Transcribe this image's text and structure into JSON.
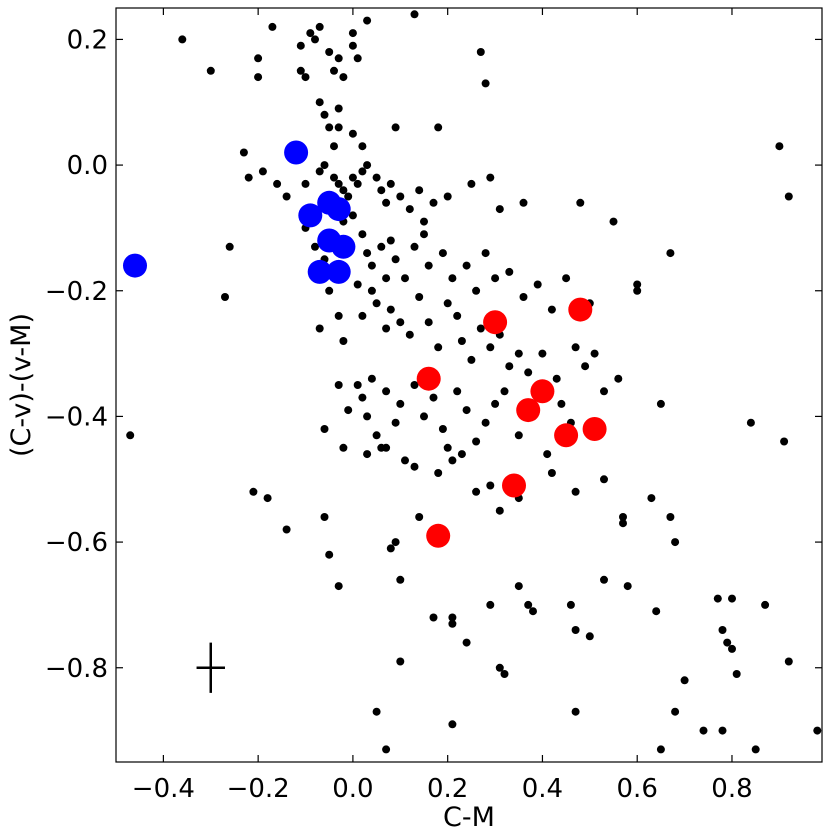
{
  "chart_data": {
    "type": "scatter",
    "title": "",
    "xlabel": "C-M",
    "ylabel": "(C-v)-(v-M)",
    "xlim": [
      -0.5,
      0.99
    ],
    "ylim": [
      -0.95,
      0.25
    ],
    "xticks": [
      -0.4,
      -0.2,
      0.0,
      0.2,
      0.4,
      0.6,
      0.8
    ],
    "xtick_labels": [
      "−0.4",
      "−0.2",
      "0.0",
      "0.2",
      "0.4",
      "0.6",
      "0.8"
    ],
    "yticks": [
      0.2,
      0.0,
      -0.2,
      -0.4,
      -0.6,
      -0.8
    ],
    "ytick_labels": [
      "0.2",
      "0.0",
      "−0.2",
      "−0.4",
      "−0.6",
      "−0.8"
    ],
    "grid": false,
    "tick_direction": "in",
    "series": [
      {
        "color": "#000000",
        "points": [
          [
            -0.36,
            0.2
          ],
          [
            -0.3,
            0.15
          ],
          [
            -0.2,
            0.17
          ],
          [
            -0.2,
            0.14
          ],
          [
            -0.17,
            0.22
          ],
          [
            -0.11,
            0.19
          ],
          [
            -0.11,
            0.15
          ],
          [
            -0.1,
            0.14
          ],
          [
            -0.09,
            0.21
          ],
          [
            -0.08,
            0.2
          ],
          [
            -0.07,
            0.22
          ],
          [
            -0.05,
            0.18
          ],
          [
            -0.04,
            0.15
          ],
          [
            -0.03,
            0.17
          ],
          [
            -0.02,
            0.14
          ],
          [
            0.0,
            0.21
          ],
          [
            0.03,
            0.23
          ],
          [
            0.0,
            0.19
          ],
          [
            0.01,
            0.17
          ],
          [
            0.13,
            0.24
          ],
          [
            0.27,
            0.18
          ],
          [
            0.28,
            0.13
          ],
          [
            -0.07,
            0.1
          ],
          [
            -0.06,
            0.08
          ],
          [
            -0.05,
            0.06
          ],
          [
            -0.04,
            0.03
          ],
          [
            -0.03,
            0.06
          ],
          [
            -0.03,
            0.09
          ],
          [
            0.0,
            0.05
          ],
          [
            0.02,
            0.03
          ],
          [
            0.09,
            0.06
          ],
          [
            0.18,
            0.06
          ],
          [
            -0.23,
            0.02
          ],
          [
            -0.22,
            -0.02
          ],
          [
            -0.19,
            -0.01
          ],
          [
            -0.16,
            -0.03
          ],
          [
            -0.14,
            -0.05
          ],
          [
            -0.1,
            -0.03
          ],
          [
            -0.07,
            -0.01
          ],
          [
            -0.06,
            0.0
          ],
          [
            -0.04,
            -0.02
          ],
          [
            -0.03,
            -0.03
          ],
          [
            -0.02,
            -0.04
          ],
          [
            -0.01,
            -0.05
          ],
          [
            0.0,
            -0.02
          ],
          [
            0.01,
            -0.03
          ],
          [
            0.02,
            -0.01
          ],
          [
            0.03,
            0.0
          ],
          [
            0.05,
            -0.02
          ],
          [
            0.06,
            -0.04
          ],
          [
            0.07,
            -0.06
          ],
          [
            0.08,
            -0.03
          ],
          [
            0.1,
            -0.05
          ],
          [
            0.12,
            -0.07
          ],
          [
            0.14,
            -0.04
          ],
          [
            0.15,
            -0.09
          ],
          [
            0.17,
            -0.06
          ],
          [
            0.2,
            -0.05
          ],
          [
            0.25,
            -0.03
          ],
          [
            0.29,
            -0.02
          ],
          [
            0.31,
            -0.07
          ],
          [
            0.36,
            -0.06
          ],
          [
            0.48,
            -0.06
          ],
          [
            0.55,
            -0.09
          ],
          [
            0.9,
            0.03
          ],
          [
            0.92,
            -0.05
          ],
          [
            -0.26,
            -0.13
          ],
          [
            -0.1,
            -0.1
          ],
          [
            -0.08,
            -0.13
          ],
          [
            -0.06,
            -0.15
          ],
          [
            -0.04,
            -0.11
          ],
          [
            -0.02,
            -0.09
          ],
          [
            0.0,
            -0.08
          ],
          [
            0.02,
            -0.11
          ],
          [
            0.03,
            -0.14
          ],
          [
            0.04,
            -0.16
          ],
          [
            0.06,
            -0.13
          ],
          [
            0.07,
            -0.18
          ],
          [
            0.08,
            -0.12
          ],
          [
            0.09,
            -0.15
          ],
          [
            0.11,
            -0.18
          ],
          [
            0.13,
            -0.13
          ],
          [
            0.15,
            -0.11
          ],
          [
            0.16,
            -0.16
          ],
          [
            0.19,
            -0.14
          ],
          [
            0.21,
            -0.18
          ],
          [
            0.24,
            -0.16
          ],
          [
            0.26,
            -0.2
          ],
          [
            0.28,
            -0.14
          ],
          [
            0.3,
            -0.18
          ],
          [
            0.33,
            -0.17
          ],
          [
            0.36,
            -0.21
          ],
          [
            0.39,
            -0.19
          ],
          [
            0.42,
            -0.23
          ],
          [
            0.45,
            -0.18
          ],
          [
            0.5,
            -0.22
          ],
          [
            0.6,
            -0.19
          ],
          [
            0.6,
            -0.2
          ],
          [
            0.67,
            -0.14
          ],
          [
            -0.27,
            -0.21
          ],
          [
            -0.07,
            -0.26
          ],
          [
            -0.05,
            -0.2
          ],
          [
            -0.03,
            -0.24
          ],
          [
            -0.02,
            -0.28
          ],
          [
            0.01,
            -0.19
          ],
          [
            0.02,
            -0.24
          ],
          [
            0.04,
            -0.2
          ],
          [
            0.05,
            -0.22
          ],
          [
            0.07,
            -0.26
          ],
          [
            0.08,
            -0.23
          ],
          [
            0.1,
            -0.25
          ],
          [
            0.12,
            -0.27
          ],
          [
            0.14,
            -0.21
          ],
          [
            0.16,
            -0.25
          ],
          [
            0.18,
            -0.29
          ],
          [
            0.2,
            -0.22
          ],
          [
            0.22,
            -0.24
          ],
          [
            0.23,
            -0.28
          ],
          [
            0.25,
            -0.31
          ],
          [
            0.27,
            -0.26
          ],
          [
            0.29,
            -0.29
          ],
          [
            0.31,
            -0.27
          ],
          [
            0.33,
            -0.32
          ],
          [
            0.35,
            -0.3
          ],
          [
            0.37,
            -0.33
          ],
          [
            0.4,
            -0.3
          ],
          [
            0.43,
            -0.34
          ],
          [
            0.47,
            -0.29
          ],
          [
            0.49,
            -0.32
          ],
          [
            0.51,
            -0.3
          ],
          [
            0.56,
            -0.34
          ],
          [
            -0.06,
            -0.42
          ],
          [
            -0.03,
            -0.35
          ],
          [
            -0.01,
            -0.39
          ],
          [
            0.01,
            -0.35
          ],
          [
            0.02,
            -0.37
          ],
          [
            0.03,
            -0.4
          ],
          [
            0.04,
            -0.34
          ],
          [
            0.05,
            -0.43
          ],
          [
            0.06,
            -0.45
          ],
          [
            0.07,
            -0.36
          ],
          [
            0.09,
            -0.41
          ],
          [
            0.1,
            -0.38
          ],
          [
            0.11,
            -0.47
          ],
          [
            0.13,
            -0.35
          ],
          [
            0.15,
            -0.4
          ],
          [
            0.17,
            -0.37
          ],
          [
            0.19,
            -0.42
          ],
          [
            0.2,
            -0.45
          ],
          [
            0.22,
            -0.36
          ],
          [
            0.24,
            -0.39
          ],
          [
            0.26,
            -0.44
          ],
          [
            0.28,
            -0.41
          ],
          [
            0.3,
            -0.38
          ],
          [
            0.32,
            -0.36
          ],
          [
            0.35,
            -0.43
          ],
          [
            0.38,
            -0.4
          ],
          [
            0.41,
            -0.46
          ],
          [
            0.44,
            -0.38
          ],
          [
            0.46,
            -0.41
          ],
          [
            0.53,
            -0.36
          ],
          [
            0.65,
            -0.38
          ],
          [
            -0.47,
            -0.43
          ],
          [
            -0.02,
            -0.45
          ],
          [
            0.03,
            -0.46
          ],
          [
            0.07,
            -0.45
          ],
          [
            0.13,
            -0.48
          ],
          [
            0.18,
            -0.49
          ],
          [
            0.21,
            -0.47
          ],
          [
            0.23,
            -0.46
          ],
          [
            0.26,
            -0.52
          ],
          [
            0.29,
            -0.51
          ],
          [
            0.31,
            -0.55
          ],
          [
            0.33,
            -0.51
          ],
          [
            0.35,
            -0.53
          ],
          [
            0.42,
            -0.49
          ],
          [
            0.47,
            -0.52
          ],
          [
            0.53,
            -0.5
          ],
          [
            0.57,
            -0.56
          ],
          [
            0.57,
            -0.57
          ],
          [
            0.63,
            -0.53
          ],
          [
            0.67,
            -0.56
          ],
          [
            0.68,
            -0.6
          ],
          [
            0.84,
            -0.41
          ],
          [
            0.91,
            -0.44
          ],
          [
            -0.21,
            -0.52
          ],
          [
            -0.18,
            -0.53
          ],
          [
            -0.14,
            -0.58
          ],
          [
            -0.06,
            -0.56
          ],
          [
            -0.05,
            -0.62
          ],
          [
            -0.03,
            -0.67
          ],
          [
            0.08,
            -0.61
          ],
          [
            0.09,
            -0.6
          ],
          [
            0.1,
            -0.66
          ],
          [
            0.14,
            -0.56
          ],
          [
            0.17,
            -0.72
          ],
          [
            0.21,
            -0.72
          ],
          [
            0.21,
            -0.73
          ],
          [
            0.24,
            -0.76
          ],
          [
            0.29,
            -0.7
          ],
          [
            0.31,
            -0.8
          ],
          [
            0.32,
            -0.81
          ],
          [
            0.35,
            -0.67
          ],
          [
            0.37,
            -0.7
          ],
          [
            0.38,
            -0.71
          ],
          [
            0.46,
            -0.7
          ],
          [
            0.47,
            -0.74
          ],
          [
            0.5,
            -0.75
          ],
          [
            0.53,
            -0.66
          ],
          [
            0.58,
            -0.67
          ],
          [
            0.64,
            -0.71
          ],
          [
            0.7,
            -0.82
          ],
          [
            0.74,
            -0.9
          ],
          [
            0.77,
            -0.69
          ],
          [
            0.78,
            -0.74
          ],
          [
            0.79,
            -0.76
          ],
          [
            0.8,
            -0.69
          ],
          [
            0.8,
            -0.77
          ],
          [
            0.81,
            -0.81
          ],
          [
            0.87,
            -0.7
          ],
          [
            0.92,
            -0.79
          ],
          [
            0.98,
            -0.9
          ],
          [
            0.1,
            -0.79
          ],
          [
            0.05,
            -0.87
          ],
          [
            0.07,
            -0.93
          ],
          [
            0.21,
            -0.89
          ],
          [
            0.47,
            -0.87
          ],
          [
            0.65,
            -0.93
          ],
          [
            0.68,
            -0.87
          ],
          [
            0.78,
            -0.9
          ],
          [
            0.85,
            -0.93
          ]
        ]
      },
      {
        "color": "#0000ff",
        "points": [
          [
            -0.12,
            0.02
          ],
          [
            -0.09,
            -0.08
          ],
          [
            -0.05,
            -0.06
          ],
          [
            -0.03,
            -0.07
          ],
          [
            -0.05,
            -0.12
          ],
          [
            -0.02,
            -0.13
          ],
          [
            -0.07,
            -0.17
          ],
          [
            -0.03,
            -0.17
          ],
          [
            -0.46,
            -0.16
          ]
        ]
      },
      {
        "color": "#ff0000",
        "points": [
          [
            0.48,
            -0.23
          ],
          [
            0.3,
            -0.25
          ],
          [
            0.16,
            -0.34
          ],
          [
            0.4,
            -0.36
          ],
          [
            0.37,
            -0.39
          ],
          [
            0.51,
            -0.42
          ],
          [
            0.45,
            -0.43
          ],
          [
            0.34,
            -0.51
          ],
          [
            0.18,
            -0.59
          ]
        ]
      }
    ],
    "error_marker": {
      "x": -0.3,
      "y": -0.8,
      "xerr": 0.03,
      "yerr": 0.04
    }
  }
}
